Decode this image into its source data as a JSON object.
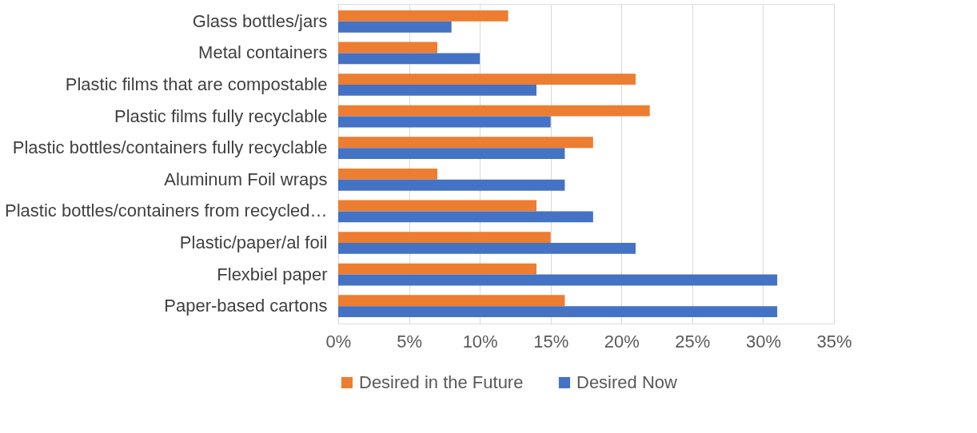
{
  "chart_data": {
    "type": "bar",
    "orientation": "horizontal",
    "categories": [
      "Glass bottles/jars",
      "Metal containers",
      "Plastic films that are compostable",
      "Plastic films fully recyclable",
      "Plastic bottles/containers fully recyclable",
      "Aluminum Foil wraps",
      "Plastic bottles/containers from recycled…",
      "Plastic/paper/al foil",
      "Flexbiel paper",
      "Paper-based cartons"
    ],
    "series": [
      {
        "name": "Desired in the Future",
        "color": "#ed7d31",
        "values": [
          12,
          7,
          21,
          22,
          18,
          7,
          14,
          15,
          14,
          16
        ]
      },
      {
        "name": "Desired Now",
        "color": "#4472c4",
        "values": [
          8,
          10,
          14,
          15,
          16,
          16,
          18,
          21,
          31,
          31
        ]
      }
    ],
    "xlim": [
      0,
      35
    ],
    "xticks": [
      {
        "value": 0,
        "label": "0%"
      },
      {
        "value": 5,
        "label": "5%"
      },
      {
        "value": 10,
        "label": "10%"
      },
      {
        "value": 15,
        "label": "15%"
      },
      {
        "value": 20,
        "label": "20%"
      },
      {
        "value": 25,
        "label": "25%"
      },
      {
        "value": 30,
        "label": "30%"
      },
      {
        "value": 35,
        "label": "35%"
      }
    ],
    "grid": "x",
    "legend": "bottom"
  }
}
